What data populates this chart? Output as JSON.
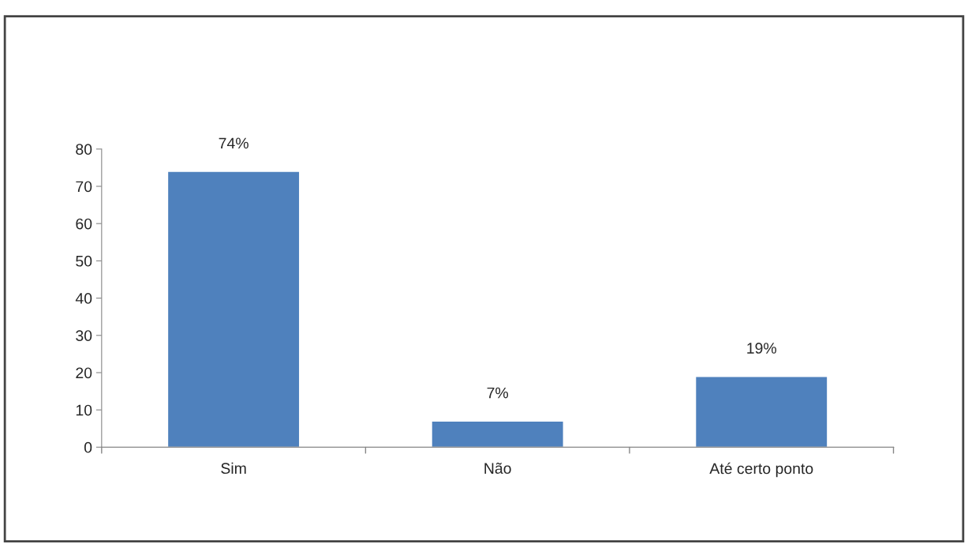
{
  "chart_data": {
    "type": "bar",
    "categories": [
      "Sim",
      "Não",
      "Até certo ponto"
    ],
    "values": [
      74,
      7,
      19
    ],
    "value_labels": [
      "74%",
      "7%",
      "19%"
    ],
    "color": "#4f81bd",
    "ylim": [
      0,
      80
    ],
    "yticks": [
      0,
      10,
      20,
      30,
      40,
      50,
      60,
      70,
      80
    ],
    "grid": false,
    "legend": false
  }
}
